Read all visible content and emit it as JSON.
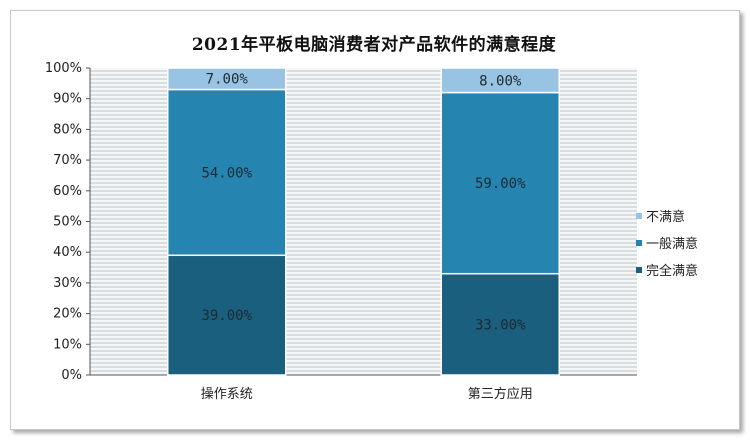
{
  "chart_data": {
    "type": "bar",
    "stacked": true,
    "title": "2021年平板电脑消费者对产品软件的满意程度",
    "categories": [
      "操作系统",
      "第三方应用"
    ],
    "series": [
      {
        "name": "完全满意",
        "values": [
          39,
          33
        ],
        "labels": [
          "39.00%",
          "33.00%"
        ],
        "color": "#1a5f7e"
      },
      {
        "name": "一般满意",
        "values": [
          54,
          59
        ],
        "labels": [
          "54.00%",
          "59.00%"
        ],
        "color": "#2584b0"
      },
      {
        "name": "不满意",
        "values": [
          7,
          8
        ],
        "labels": [
          "7.00%",
          "8.00%"
        ],
        "color": "#98c3e3"
      }
    ],
    "yticks": [
      "0%",
      "10%",
      "20%",
      "30%",
      "40%",
      "50%",
      "60%",
      "70%",
      "80%",
      "90%",
      "100%"
    ],
    "ylim": [
      0,
      100
    ],
    "legend": [
      "不满意",
      "一般满意",
      "完全满意"
    ],
    "legend_position": "right"
  }
}
